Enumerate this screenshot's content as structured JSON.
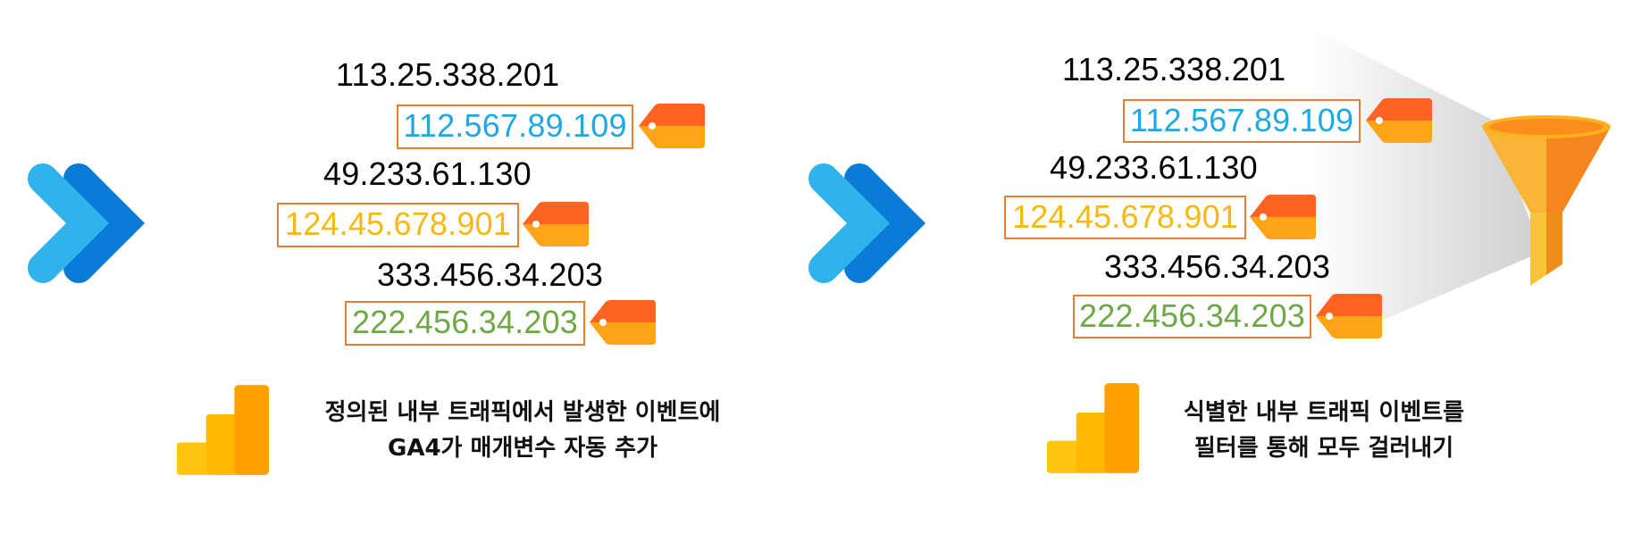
{
  "left_panel": {
    "rows": [
      {
        "plain_ip": "113.25.338.201",
        "tagged_ip": "112.567.89.109",
        "tagged_color": "#1FA8E3"
      },
      {
        "plain_ip": "49.233.61.130",
        "tagged_ip": "124.45.678.901",
        "tagged_color": "#F8B80E"
      },
      {
        "plain_ip": "333.456.34.203",
        "tagged_ip": "222.456.34.203",
        "tagged_color": "#6CA945"
      }
    ],
    "caption": {
      "line1": "정의된 내부 트래픽에서 발생한 이벤트에",
      "line2": "GA4가 매개변수 자동 추가"
    }
  },
  "right_panel": {
    "rows": [
      {
        "plain_ip": "113.25.338.201",
        "tagged_ip": "112.567.89.109",
        "tagged_color": "#1FA8E3"
      },
      {
        "plain_ip": "49.233.61.130",
        "tagged_ip": "124.45.678.901",
        "tagged_color": "#F8B80E"
      },
      {
        "plain_ip": "333.456.34.203",
        "tagged_ip": "222.456.34.203",
        "tagged_color": "#6CA945"
      }
    ],
    "caption": {
      "line1": "식별한 내부 트래픽 이벤트를",
      "line2": "필터를 통해 모두 걸러내기"
    }
  },
  "icons": {
    "arrow": "double-chevron-icon",
    "tag": "tag-icon",
    "logo": "google-analytics-logo",
    "filter": "funnel-icon"
  },
  "colors": {
    "box_border": "#ED7D31",
    "chevron_light": "#2FB3EC",
    "chevron_dark": "#0A7CD7",
    "tag_top": "#FF6321",
    "tag_bottom": "#FFA417",
    "beam": "#CFCFCF",
    "text": "#000000"
  }
}
